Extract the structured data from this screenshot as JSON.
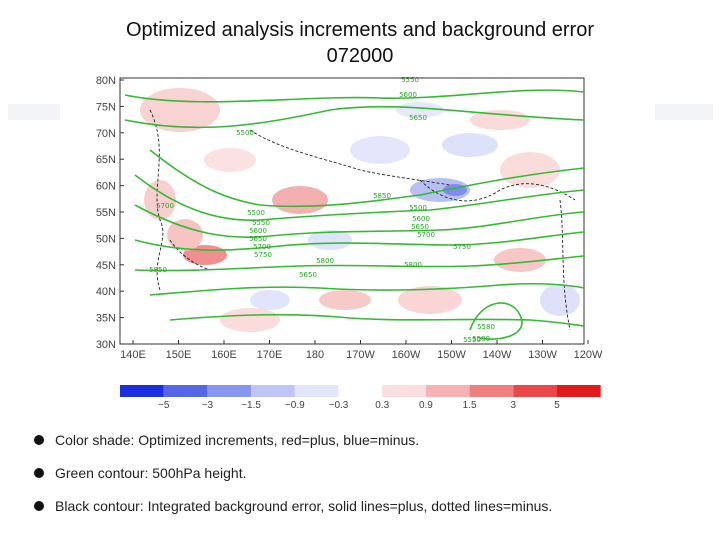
{
  "slide": {
    "title_line1": "Optimized analysis increments and background error",
    "title_line2": "072000"
  },
  "map": {
    "lat_labels": [
      "80N",
      "75N",
      "70N",
      "65N",
      "60N",
      "55N",
      "50N",
      "45N",
      "40N",
      "35N",
      "30N"
    ],
    "lon_labels": [
      "140E",
      "150E",
      "160E",
      "170E",
      "180",
      "170W",
      "160W",
      "150W",
      "140W",
      "130W",
      "120W"
    ],
    "contour_labels": [
      "5550",
      "5600",
      "5650",
      "5500",
      "5700",
      "5500",
      "5550",
      "5600",
      "5650",
      "5700",
      "5750",
      "5800",
      "5650",
      "5850",
      "5500",
      "5600",
      "5650",
      "5700",
      "5750",
      "5800",
      "5850",
      "5580",
      "5580",
      "5550"
    ]
  },
  "colorbar": {
    "colors": [
      "#1e2fe0",
      "#5566e6",
      "#8896ef",
      "#bfc6f6",
      "#e3e6fb",
      "#ffffff",
      "#fbdede",
      "#f6b3b3",
      "#f07f7f",
      "#ea4848",
      "#e21a1a"
    ],
    "labels": [
      "−5",
      "−3",
      "−1.5",
      "−0.9",
      "−0.3",
      "0.3",
      "0.9",
      "1.5",
      "3",
      "5"
    ]
  },
  "bullets": [
    "Color shade: Optimized increments, red=plus, blue=minus.",
    "Green contour: 500hPa height.",
    "Black contour: Integrated background error, solid lines=plus, dotted lines=minus."
  ]
}
